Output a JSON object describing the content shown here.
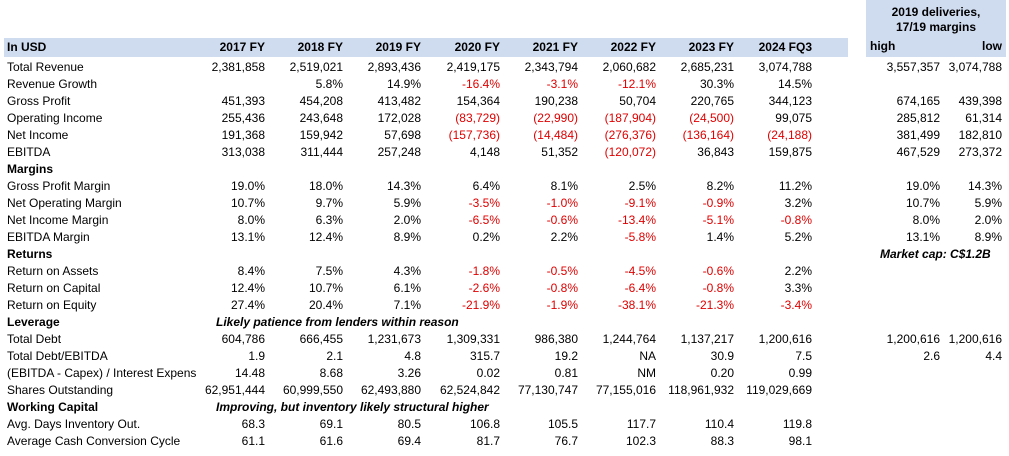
{
  "header": {
    "label": "In USD",
    "periods": [
      "2017 FY",
      "2018 FY",
      "2019 FY",
      "2020 FY",
      "2021 FY",
      "2022 FY",
      "2023 FY",
      "2024 FQ3"
    ]
  },
  "side_panel": {
    "title_line1": "2019 deliveries,",
    "title_line2": "17/19 margins",
    "col_high": "high",
    "col_low": "low"
  },
  "colors": {
    "header_fill": "#cfdcf0",
    "negative": "#e00000"
  },
  "rows": [
    {
      "label": "Total Revenue",
      "values": [
        "2,381,858",
        "2,519,021",
        "2,893,436",
        "2,419,175",
        "2,343,794",
        "2,060,682",
        "2,685,231",
        "3,074,788"
      ],
      "high": "3,557,357",
      "low": "3,074,788"
    },
    {
      "label": "Revenue Growth",
      "values": [
        "",
        "5.8%",
        "14.9%",
        "-16.4%",
        "-3.1%",
        "-12.1%",
        "30.3%",
        "14.5%"
      ],
      "high": "",
      "low": ""
    },
    {
      "label": "Gross Profit",
      "values": [
        "451,393",
        "454,208",
        "413,482",
        "154,364",
        "190,238",
        "50,704",
        "220,765",
        "344,123"
      ],
      "high": "674,165",
      "low": "439,398"
    },
    {
      "label": "Operating Income",
      "values": [
        "255,436",
        "243,648",
        "172,028",
        "(83,729)",
        "(22,990)",
        "(187,904)",
        "(24,500)",
        "99,075"
      ],
      "high": "285,812",
      "low": "61,314"
    },
    {
      "label": "Net Income",
      "values": [
        "191,368",
        "159,942",
        "57,698",
        "(157,736)",
        "(14,484)",
        "(276,376)",
        "(136,164)",
        "(24,188)"
      ],
      "high": "381,499",
      "low": "182,810"
    },
    {
      "label": "EBITDA",
      "values": [
        "313,038",
        "311,444",
        "257,248",
        "4,148",
        "51,352",
        "(120,072)",
        "36,843",
        "159,875"
      ],
      "high": "467,529",
      "low": "273,372"
    },
    {
      "label": "Margins",
      "section": true
    },
    {
      "label": "Gross Profit Margin",
      "values": [
        "19.0%",
        "18.0%",
        "14.3%",
        "6.4%",
        "8.1%",
        "2.5%",
        "8.2%",
        "11.2%"
      ],
      "high": "19.0%",
      "low": "14.3%"
    },
    {
      "label": "Net Operating Margin",
      "values": [
        "10.7%",
        "9.7%",
        "5.9%",
        "-3.5%",
        "-1.0%",
        "-9.1%",
        "-0.9%",
        "3.2%"
      ],
      "high": "10.7%",
      "low": "5.9%"
    },
    {
      "label": "Net Income Margin",
      "values": [
        "8.0%",
        "6.3%",
        "2.0%",
        "-6.5%",
        "-0.6%",
        "-13.4%",
        "-5.1%",
        "-0.8%"
      ],
      "high": "8.0%",
      "low": "2.0%"
    },
    {
      "label": "EBITDA Margin",
      "values": [
        "13.1%",
        "12.4%",
        "8.9%",
        "0.2%",
        "2.2%",
        "-5.8%",
        "1.4%",
        "5.2%"
      ],
      "high": "13.1%",
      "low": "8.9%"
    },
    {
      "label": "Returns",
      "section": true,
      "side_note": "Market cap: C$1.2B"
    },
    {
      "label": "Return on Assets",
      "values": [
        "8.4%",
        "7.5%",
        "4.3%",
        "-1.8%",
        "-0.5%",
        "-4.5%",
        "-0.6%",
        "2.2%"
      ],
      "high": "",
      "low": ""
    },
    {
      "label": "Return on Capital",
      "values": [
        "12.4%",
        "10.7%",
        "6.1%",
        "-2.6%",
        "-0.8%",
        "-6.4%",
        "-0.8%",
        "3.3%"
      ],
      "high": "",
      "low": ""
    },
    {
      "label": "Return on Equity",
      "values": [
        "27.4%",
        "20.4%",
        "7.1%",
        "-21.9%",
        "-1.9%",
        "-38.1%",
        "-21.3%",
        "-3.4%"
      ],
      "high": "",
      "low": ""
    },
    {
      "label": "Leverage",
      "section": true,
      "note": "Likely patience from lenders within reason"
    },
    {
      "label": "Total Debt",
      "values": [
        "604,786",
        "666,455",
        "1,231,673",
        "1,309,331",
        "986,380",
        "1,244,764",
        "1,137,217",
        "1,200,616"
      ],
      "high": "1,200,616",
      "low": "1,200,616"
    },
    {
      "label": "Total Debt/EBITDA",
      "values": [
        "1.9",
        "2.1",
        "4.8",
        "315.7",
        "19.2",
        "NA",
        "30.9",
        "7.5"
      ],
      "high": "2.6",
      "low": "4.4"
    },
    {
      "label": "(EBITDA - Capex) / Interest Expens",
      "values": [
        "14.48",
        "8.68",
        "3.26",
        "0.02",
        "0.81",
        "NM",
        "0.20",
        "0.99"
      ],
      "high": "",
      "low": ""
    },
    {
      "label": "Shares Outstanding",
      "values": [
        "62,951,444",
        "60,999,550",
        "62,493,880",
        "62,524,842",
        "77,130,747",
        "77,155,016",
        "118,961,932",
        "119,029,669"
      ],
      "high": "",
      "low": ""
    },
    {
      "label": "Working Capital",
      "section": true,
      "note": "Improving, but inventory likely structural higher"
    },
    {
      "label": "Avg. Days Inventory Out.",
      "values": [
        "68.3",
        "69.1",
        "80.5",
        "106.8",
        "105.5",
        "117.7",
        "110.4",
        "119.8"
      ],
      "high": "",
      "low": ""
    },
    {
      "label": "Average Cash Conversion Cycle",
      "values": [
        "61.1",
        "61.6",
        "69.4",
        "81.7",
        "76.7",
        "102.3",
        "88.3",
        "98.1"
      ],
      "high": "",
      "low": ""
    }
  ]
}
